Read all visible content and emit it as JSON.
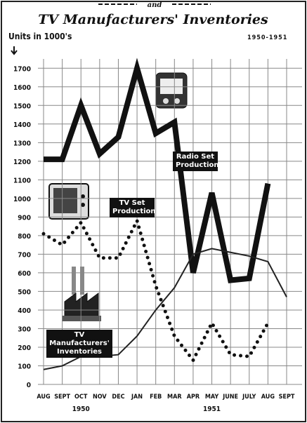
{
  "chart_data": {
    "type": "line",
    "subtitle": "and",
    "title": "TV Manufacturers' Inventories",
    "y_label": "Units in 1000's",
    "period": "1950-1951",
    "categories": [
      "AUG",
      "SEPT",
      "OCT",
      "NOV",
      "DEC",
      "JAN",
      "FEB",
      "MAR",
      "APR",
      "MAY",
      "JUNE",
      "JULY",
      "AUG",
      "SEPT"
    ],
    "year_labels": [
      "1950",
      "1951"
    ],
    "ylim": [
      0,
      1750
    ],
    "yticks": [
      0,
      100,
      200,
      300,
      400,
      500,
      600,
      700,
      800,
      900,
      1000,
      1100,
      1200,
      1300,
      1400,
      1500,
      1600,
      1700
    ],
    "grid": true,
    "series": [
      {
        "name": "Radio Set Production",
        "color": "#111111",
        "style": "thick",
        "values": [
          1210,
          1210,
          1500,
          1240,
          1330,
          1700,
          1350,
          1410,
          600,
          1030,
          560,
          570,
          1080,
          null
        ]
      },
      {
        "name": "TV Set Production",
        "color": "#111111",
        "style": "dotted",
        "values": [
          810,
          750,
          870,
          680,
          680,
          880,
          530,
          260,
          130,
          330,
          160,
          150,
          330,
          null
        ]
      },
      {
        "name": "TV Manufacturers' Inventories",
        "color": "#222222",
        "style": "thin",
        "values": [
          80,
          100,
          150,
          150,
          160,
          260,
          400,
          520,
          700,
          730,
          710,
          690,
          660,
          470
        ]
      }
    ]
  }
}
